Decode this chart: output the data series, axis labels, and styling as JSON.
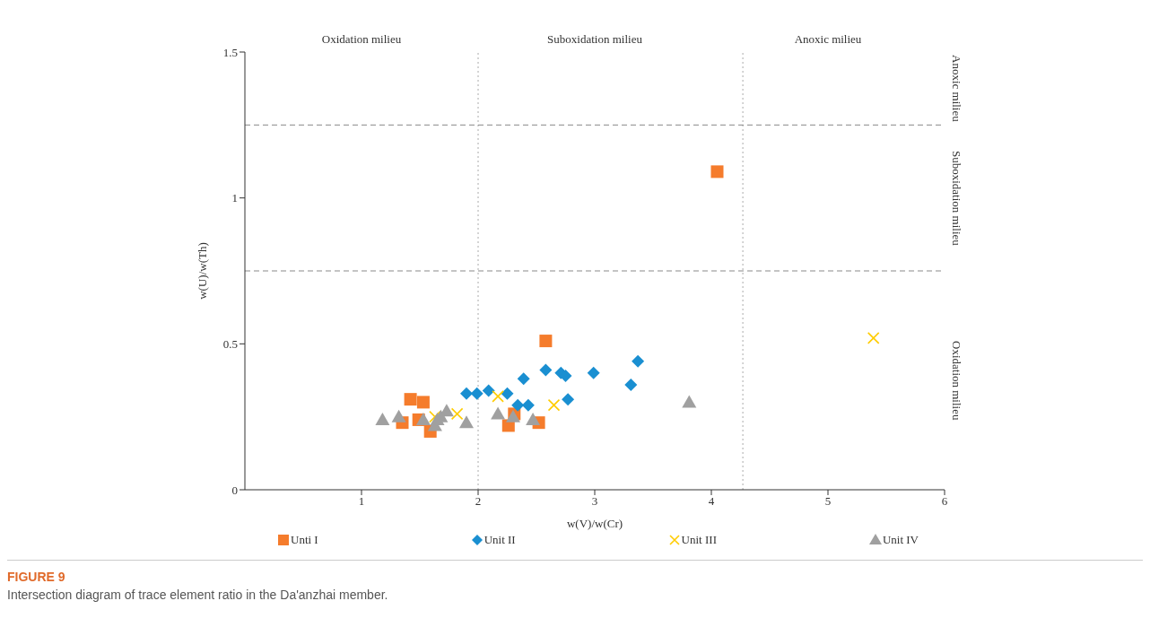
{
  "chart_data": {
    "type": "scatter",
    "title": "FIGURE 9",
    "subtitle": "Intersection diagram of trace element ratio in the Da'anzhai member.",
    "xlabel": "w(V)/w(Cr)",
    "ylabel": "w(U)/w(Th)",
    "annotations": [
      "Oxidation milieu",
      "Suboxidation milieu",
      "Anoxic milieu",
      "Anoxic milieu",
      "Suboxidation milieu",
      "Oxidation milieu"
    ],
    "xlim": [
      0,
      6
    ],
    "xticks": [
      1,
      2,
      3,
      4,
      5,
      6
    ],
    "ylim": [
      0,
      1.5
    ],
    "yticks": [
      0,
      0.5,
      1,
      1.5
    ],
    "grid": false,
    "legend": "bottom",
    "ref_lines": [
      {
        "axis": "x",
        "value": 2,
        "line_style": "dotted",
        "color": "#aaaaaa"
      },
      {
        "axis": "x",
        "value": 4.27,
        "line_style": "dotted",
        "color": "#aaaaaa"
      },
      {
        "axis": "y",
        "value": 0.75,
        "line_style": "dashed",
        "color": "#888888"
      },
      {
        "axis": "y",
        "value": 1.25,
        "line_style": "dashed",
        "color": "#888888"
      }
    ],
    "series": [
      {
        "name": "Unti I",
        "color": "#f57c2c",
        "marker": "square",
        "x": [
          1.42,
          1.53,
          1.35,
          1.49,
          1.59,
          2.31,
          2.26,
          2.52,
          2.58,
          4.05
        ],
        "values": [
          0.31,
          0.3,
          0.23,
          0.24,
          0.2,
          0.26,
          0.22,
          0.23,
          0.51,
          1.09
        ]
      },
      {
        "name": "Unit II",
        "color": "#1a8fd1",
        "marker": "diamond",
        "x": [
          1.9,
          1.99,
          2.09,
          2.25,
          2.39,
          2.34,
          2.43,
          2.58,
          2.71,
          2.75,
          2.77,
          2.99,
          3.31,
          3.37
        ],
        "values": [
          0.33,
          0.33,
          0.34,
          0.33,
          0.38,
          0.29,
          0.29,
          0.41,
          0.4,
          0.39,
          0.31,
          0.4,
          0.36,
          0.44
        ]
      },
      {
        "name": "Unit III",
        "color": "#ffcc00",
        "marker": "cross",
        "x": [
          1.63,
          1.82,
          2.17,
          2.65,
          5.39
        ],
        "values": [
          0.25,
          0.26,
          0.32,
          0.29,
          0.52
        ]
      },
      {
        "name": "Unit IV",
        "color": "#a0a0a0",
        "marker": "triangle",
        "x": [
          1.18,
          1.32,
          1.53,
          1.63,
          1.65,
          1.68,
          1.73,
          1.9,
          2.17,
          2.3,
          2.47,
          3.81
        ],
        "values": [
          0.24,
          0.25,
          0.24,
          0.22,
          0.24,
          0.25,
          0.27,
          0.23,
          0.26,
          0.25,
          0.24,
          0.3
        ]
      }
    ]
  }
}
